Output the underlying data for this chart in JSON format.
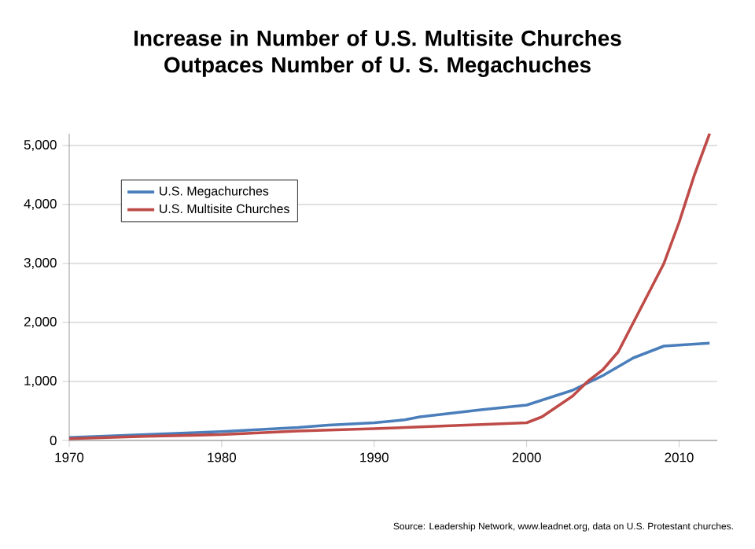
{
  "chart_data": {
    "type": "line",
    "title": "Increase in Number of U.S. Multisite Churches Outpaces Number of U. S. Megachuches",
    "series": [
      {
        "name": "U.S. Megachurches",
        "color": "#4a7ebb",
        "x": [
          1970,
          1975,
          1980,
          1985,
          1987,
          1990,
          1992,
          1993,
          1997,
          2000,
          2003,
          2005,
          2006,
          2007,
          2009,
          2012
        ],
        "values": [
          50,
          100,
          150,
          220,
          260,
          300,
          350,
          400,
          520,
          600,
          850,
          1100,
          1250,
          1400,
          1600,
          1650
        ]
      },
      {
        "name": "U.S. Multisite Churches",
        "color": "#be4b48",
        "x": [
          1970,
          1975,
          1980,
          1985,
          1990,
          1993,
          1997,
          2000,
          2001,
          2003,
          2004,
          2005,
          2006,
          2007,
          2009,
          2010,
          2011,
          2012
        ],
        "values": [
          30,
          70,
          100,
          160,
          200,
          230,
          270,
          300,
          400,
          750,
          1000,
          1200,
          1500,
          2000,
          3000,
          3700,
          4500,
          5200
        ]
      }
    ],
    "xlim": [
      1970,
      2012.5
    ],
    "xticks": [
      1970,
      1980,
      1990,
      2000,
      2010
    ],
    "ylim": [
      0,
      5200
    ],
    "yticks": [
      0,
      {
        "value": 1000,
        "label": "1,000"
      },
      {
        "value": 2000,
        "label": "2,000"
      },
      {
        "value": 3000,
        "label": "3,000"
      },
      {
        "value": 4000,
        "label": "4,000"
      },
      {
        "value": 5000,
        "label": "5,000"
      }
    ],
    "grid": "y",
    "legend": "top left",
    "marker": "none",
    "line_style": "solid",
    "annotations": [
      "Source: Leadership Network, www.leadnet.org, data on U.S. Protestant churches."
    ]
  }
}
